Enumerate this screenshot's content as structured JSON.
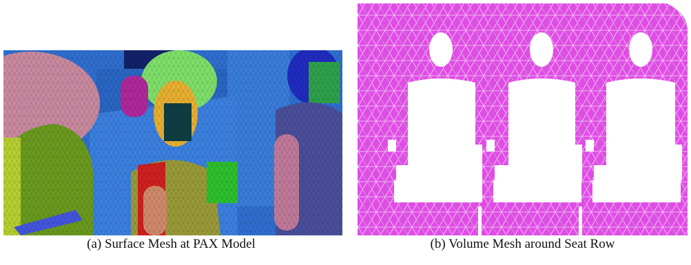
{
  "captions": {
    "a": "(a) Surface Mesh at PAX Model",
    "b": "(b) Volume Mesh around Seat Row"
  }
}
